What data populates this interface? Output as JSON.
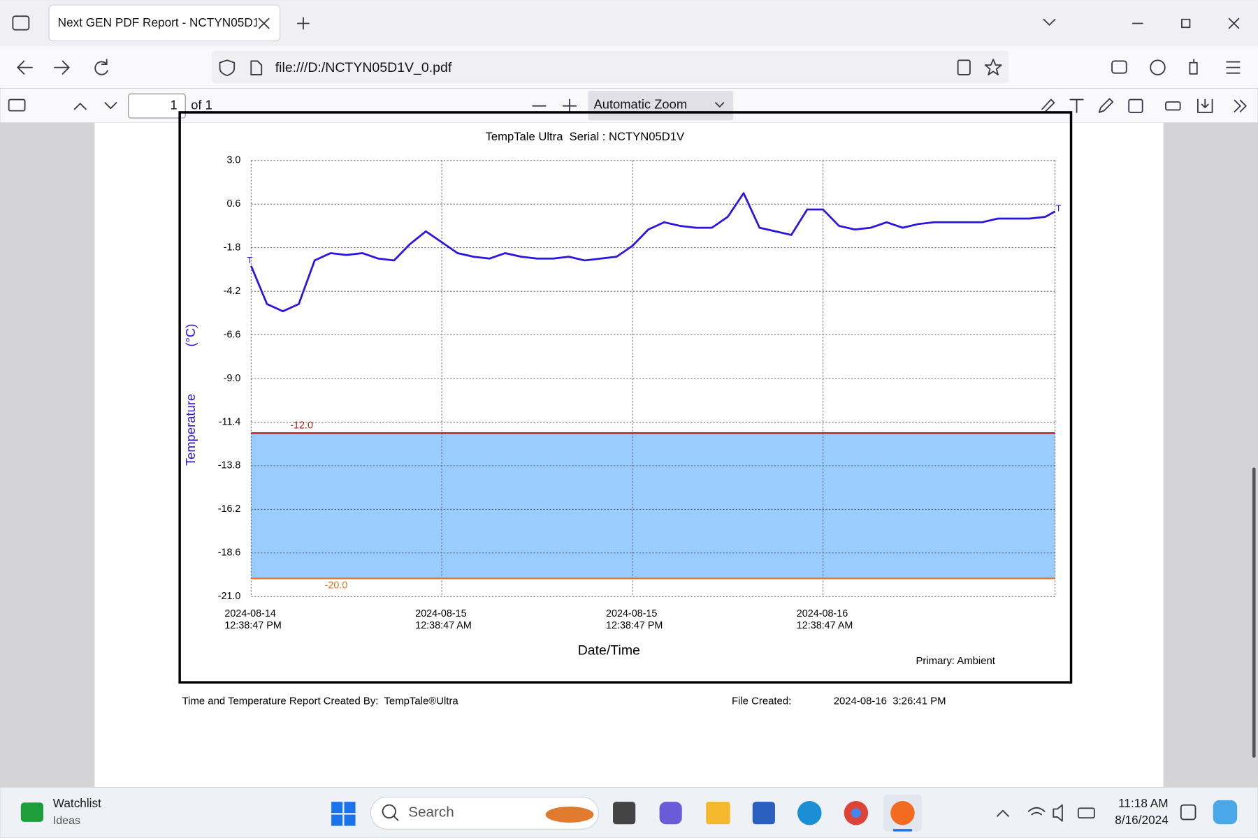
{
  "browser": {
    "tab_title": "Next GEN PDF Report - NCTYN05D1",
    "url": "file:///D:/NCTYN05D1V_0.pdf"
  },
  "pdf_viewer": {
    "page_number": "1",
    "page_count": "of 1",
    "zoom": "Automatic Zoom"
  },
  "chart_data": {
    "type": "line",
    "title": "TempTale Ultra  Serial : NCTYN05D1V",
    "y_label": "Temperature",
    "y_unit": "(°C)",
    "x_label": "Date/Time",
    "point_marker": "T",
    "grid": true,
    "ylim": [
      -21,
      3
    ],
    "yticks": [
      {
        "value": 3,
        "label": "3.0"
      },
      0.6,
      -1.8,
      -4.2,
      -6.6,
      {
        "value": -9,
        "label": "-9.0"
      },
      -11.4,
      -13.8,
      -16.2,
      -18.6,
      {
        "value": -21,
        "label": "-21.0"
      }
    ],
    "xlim": [
      "2024-08-14 12:38:47",
      "2024-08-16 15:14:47"
    ],
    "xticks": [
      {
        "value": "2024-08-14 12:38:47",
        "label": "2024-08-14\n12:38:47 PM"
      },
      {
        "value": "2024-08-15 00:38:47",
        "label": "2024-08-15\n12:38:47 AM"
      },
      {
        "value": "2024-08-15 12:38:47",
        "label": "2024-08-15\n12:38:47 PM"
      },
      {
        "value": "2024-08-16 00:38:47",
        "label": "2024-08-16\n12:38:47 AM"
      }
    ],
    "limits": [
      {
        "value": -12,
        "label": "-12.0",
        "color": "#b22222"
      },
      {
        "value": -20,
        "label": "-20.0",
        "color": "#f07020"
      }
    ],
    "band_color": "#99ccff",
    "x": [
      "2024-08-14 12:38:47",
      "2024-08-14 13:38:47",
      "2024-08-14 14:38:47",
      "2024-08-14 15:38:47",
      "2024-08-14 16:38:47",
      "2024-08-14 17:38:47",
      "2024-08-14 18:38:47",
      "2024-08-14 19:38:47",
      "2024-08-14 20:38:47",
      "2024-08-14 21:38:47",
      "2024-08-14 22:38:47",
      "2024-08-14 23:38:47",
      "2024-08-15 00:38:47",
      "2024-08-15 01:38:47",
      "2024-08-15 02:38:47",
      "2024-08-15 03:38:47",
      "2024-08-15 04:38:47",
      "2024-08-15 05:38:47",
      "2024-08-15 06:38:47",
      "2024-08-15 07:38:47",
      "2024-08-15 08:38:47",
      "2024-08-15 09:38:47",
      "2024-08-15 10:38:47",
      "2024-08-15 11:38:47",
      "2024-08-15 12:38:47",
      "2024-08-15 13:38:47",
      "2024-08-15 14:38:47",
      "2024-08-15 15:38:47",
      "2024-08-15 16:38:47",
      "2024-08-15 17:38:47",
      "2024-08-15 18:38:47",
      "2024-08-15 19:38:47",
      "2024-08-15 20:38:47",
      "2024-08-15 21:38:47",
      "2024-08-15 22:38:47",
      "2024-08-15 23:38:47",
      "2024-08-16 00:38:47",
      "2024-08-16 01:38:47",
      "2024-08-16 02:38:47",
      "2024-08-16 03:38:47",
      "2024-08-16 04:38:47",
      "2024-08-16 05:38:47",
      "2024-08-16 06:38:47",
      "2024-08-16 07:38:47",
      "2024-08-16 08:38:47",
      "2024-08-16 09:38:47",
      "2024-08-16 10:38:47",
      "2024-08-16 11:38:47",
      "2024-08-16 12:38:47",
      "2024-08-16 13:38:47",
      "2024-08-16 14:38:47",
      "2024-08-16 15:14:47"
    ],
    "series": [
      {
        "name": "Primary: Ambient",
        "color": "#2a14e0",
        "values": [
          -2.8,
          -4.9,
          -5.3,
          -4.9,
          -2.5,
          -2.1,
          -2.2,
          -2.1,
          -2.4,
          -2.5,
          -1.6,
          -0.9,
          -1.5,
          -2.1,
          -2.3,
          -2.4,
          -2.1,
          -2.3,
          -2.4,
          -2.4,
          -2.3,
          -2.5,
          -2.4,
          -2.3,
          -1.7,
          -0.8,
          -0.4,
          -0.6,
          -0.7,
          -0.7,
          -0.1,
          1.2,
          -0.7,
          -0.9,
          -1.1,
          0.3,
          0.3,
          -0.6,
          -0.8,
          -0.7,
          -0.4,
          -0.7,
          -0.5,
          -0.4,
          -0.4,
          -0.4,
          -0.4,
          -0.2,
          -0.2,
          -0.2,
          -0.1,
          0.2
        ]
      }
    ]
  },
  "report_footer": {
    "created_by": "Time and Temperature Report Created By:  TempTale®Ultra",
    "file_created_label": "File Created:",
    "file_created": "2024-08-16  3:26:41 PM"
  },
  "taskbar": {
    "widget_title": "Watchlist",
    "widget_subtitle": "Ideas",
    "search": "Search",
    "time": "11:18 AM",
    "date": "8/16/2024"
  }
}
